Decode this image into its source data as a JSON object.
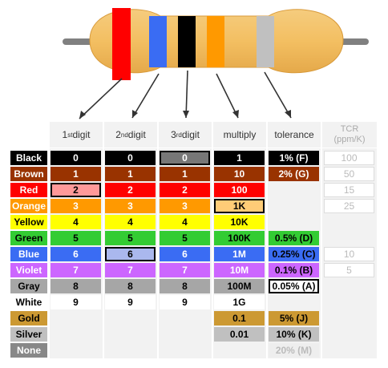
{
  "resistor": {
    "band_colors": [
      "#ff0000",
      "#3a6cf3",
      "#000000",
      "#ff9900",
      "#c0c0c0"
    ]
  },
  "headers": {
    "digit1": {
      "num": "1",
      "sup": "st",
      "word": " digit"
    },
    "digit2": {
      "num": "2",
      "sup": "nd",
      "word": " digit"
    },
    "digit3": {
      "num": "3",
      "sup": "rd",
      "word": " digit"
    },
    "multiply": "multiply",
    "tolerance": "tolerance",
    "tcr_line1": "TCR",
    "tcr_line2": "(ppm/K)"
  },
  "rows": [
    {
      "name": "Black",
      "color": "#000000",
      "text": "#ffffff",
      "d1": "0",
      "d2": "0",
      "d3": "0",
      "mult": "1",
      "tol": "1% (F)",
      "tcr": "100"
    },
    {
      "name": "Brown",
      "color": "#993300",
      "text": "#ffffff",
      "d1": "1",
      "d2": "1",
      "d3": "1",
      "mult": "10",
      "tol": "2% (G)",
      "tcr": "50"
    },
    {
      "name": "Red",
      "color": "#ff0000",
      "text": "#ffffff",
      "d1": "2",
      "d2": "2",
      "d3": "2",
      "mult": "100",
      "tol": "",
      "tcr": "15"
    },
    {
      "name": "Orange",
      "color": "#ff9900",
      "text": "#ffffff",
      "d1": "3",
      "d2": "3",
      "d3": "3",
      "mult": "1K",
      "tol": "",
      "tcr": "25"
    },
    {
      "name": "Yellow",
      "color": "#ffff00",
      "text": "#000000",
      "d1": "4",
      "d2": "4",
      "d3": "4",
      "mult": "10K",
      "tol": "",
      "tcr": ""
    },
    {
      "name": "Green",
      "color": "#33cc33",
      "text": "#000000",
      "d1": "5",
      "d2": "5",
      "d3": "5",
      "mult": "100K",
      "tol": "0.5% (D)",
      "tcr": ""
    },
    {
      "name": "Blue",
      "color": "#3a6cf3",
      "text": "#ffffff",
      "d1": "6",
      "d2": "6",
      "d3": "6",
      "mult": "1M",
      "tol": "0.25% (C)",
      "tcr": "10"
    },
    {
      "name": "Violet",
      "color": "#cc66ff",
      "text": "#ffffff",
      "d1": "7",
      "d2": "7",
      "d3": "7",
      "mult": "10M",
      "tol": "0.1% (B)",
      "tcr": "5"
    },
    {
      "name": "Gray",
      "color": "#a6a6a6",
      "text": "#000000",
      "d1": "8",
      "d2": "8",
      "d3": "8",
      "mult": "100M",
      "tol": "0.05% (A)",
      "tcr": ""
    },
    {
      "name": "White",
      "color": "#ffffff",
      "text": "#000000",
      "d1": "9",
      "d2": "9",
      "d3": "9",
      "mult": "1G",
      "tol": "",
      "tcr": ""
    },
    {
      "name": "Gold",
      "color": "#cc9933",
      "text": "#000000",
      "d1": "",
      "d2": "",
      "d3": "",
      "mult": "0.1",
      "tol": "5% (J)",
      "tcr": ""
    },
    {
      "name": "Silver",
      "color": "#c0c0c0",
      "text": "#000000",
      "d1": "",
      "d2": "",
      "d3": "",
      "mult": "0.01",
      "tol": "10% (K)",
      "tcr": ""
    },
    {
      "name": "None",
      "color": "#888888",
      "text": "#ffffff",
      "d1": "",
      "d2": "",
      "d3": "",
      "mult": "",
      "tol": "20% (M)",
      "tcr": ""
    }
  ]
}
